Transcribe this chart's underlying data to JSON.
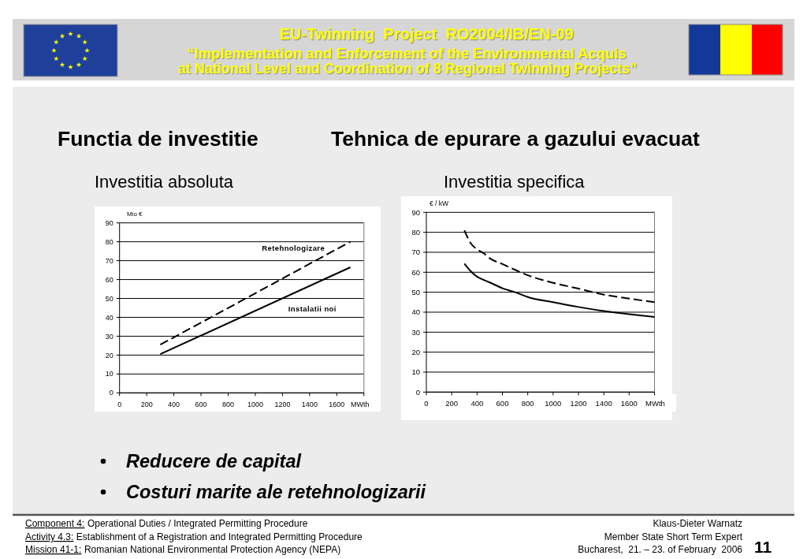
{
  "chart_data": [
    {
      "type": "line",
      "title": "Functia de investitie",
      "subtitle": "Investitia absoluta",
      "xlabel": "MWth",
      "ylabel": "Mio €",
      "xlim": [
        0,
        1800
      ],
      "xticks": [
        0,
        200,
        400,
        600,
        800,
        1000,
        1200,
        1400,
        1600,
        {
          "value": 1800,
          "label": null
        }
      ],
      "ylim": [
        0,
        90
      ],
      "yticks": [
        0,
        10,
        20,
        30,
        40,
        50,
        60,
        70,
        80,
        90
      ],
      "grid": "y",
      "series": [
        {
          "name": "Retehnologizare",
          "color": "#000000",
          "line_style": "dashed",
          "x": [
            300,
            1700
          ],
          "values": [
            25.5,
            80
          ]
        },
        {
          "name": "Instalatii noi",
          "color": "#000000",
          "line_style": "solid",
          "x": [
            300,
            1700
          ],
          "values": [
            20.5,
            66.5
          ]
        }
      ],
      "annotations": [
        "EU-Twinning  Project  RO2004/IB/EN-09",
        "“Implementation and Enforcement of the Environmental Acquis",
        "at National Level and Coordination of 8 Regional Twinning Projects”",
        "Reducere de capital",
        "Costuri marite ale retehnologizarii",
        "Component 4:",
        "Operational Duties / Integrated Permitting Procedure",
        "Activity 4.3:",
        "Establishment of a Registration and Integrated Permitting Procedure",
        "Mission 41-1:",
        "Romanian National Environmental Protection Agency (NEPA)",
        "Klaus-Dieter Warnatz",
        "Member State Short Term Expert",
        "Bucharest,  21. – 23. of February  2006",
        "11"
      ]
    },
    {
      "type": "line",
      "title": "Tehnica de epurare a gazului evacuat",
      "subtitle": "Investitia specifica",
      "xlabel": "MWth",
      "ylabel": "€ / kW",
      "xlim": [
        0,
        1800
      ],
      "xticks": [
        0,
        200,
        400,
        600,
        800,
        1000,
        1200,
        1400,
        1600,
        {
          "value": 1800,
          "label": null
        }
      ],
      "ylim": [
        0,
        90
      ],
      "yticks": [
        0,
        10,
        20,
        30,
        40,
        50,
        60,
        70,
        80,
        90
      ],
      "grid": "y",
      "series": [
        {
          "color": "#000000",
          "line_style": "dashed",
          "x": [
            300,
            350,
            400,
            450,
            500,
            600,
            700,
            800,
            1000,
            1200,
            1400,
            1600,
            1800
          ],
          "values": [
            81,
            74.5,
            71.5,
            69.6,
            67,
            64.1,
            61.2,
            58.5,
            54.7,
            51.8,
            48.8,
            46.8,
            45
          ]
        },
        {
          "color": "#000000",
          "line_style": "solid",
          "x": [
            300,
            350,
            400,
            450,
            500,
            600,
            700,
            800,
            1000,
            1200,
            1400,
            1600,
            1800
          ],
          "values": [
            64.3,
            60.5,
            57.8,
            56.2,
            54.9,
            52,
            50,
            47.6,
            45,
            42.6,
            40.6,
            39,
            37.6
          ]
        }
      ]
    }
  ]
}
